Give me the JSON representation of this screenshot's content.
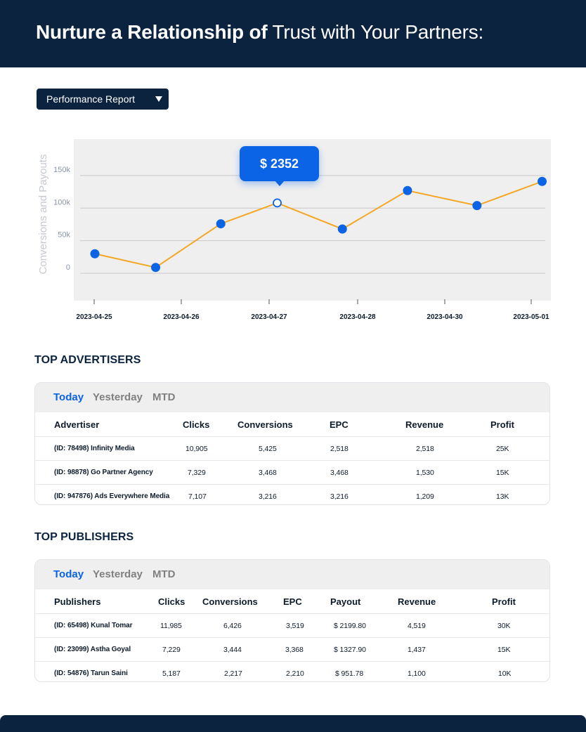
{
  "header": {
    "title_bold": "Nurture a Relationship of",
    "title_rest": " Trust with Your Partners:"
  },
  "report_select": {
    "label": "Performance Report"
  },
  "chart_data": {
    "type": "line",
    "ylabel": "Conversions and Payouts",
    "xlabel": "",
    "title": "",
    "y_ticks": [
      "150k",
      "100k",
      "50k",
      "0"
    ],
    "y_tick_values": [
      150000,
      100000,
      50000,
      0
    ],
    "x_tick_labels": [
      "2023-04-25",
      "2023-04-26",
      "2023-04-27",
      "2023-04-28",
      "2023-04-30",
      "2023-05-01"
    ],
    "x": [
      0,
      0.7,
      1.45,
      2.1,
      2.85,
      3.6,
      4.4,
      5.15
    ],
    "values": [
      30000,
      9000,
      76000,
      108000,
      68000,
      127000,
      104000,
      141000
    ],
    "highlight_index": 3,
    "tooltip": "$ 2352",
    "ylim": [
      -42000,
      206000
    ],
    "line_color": "#f5a623",
    "point_color": "#0b63e5",
    "grid": true
  },
  "advertisers": {
    "title": "TOP ADVERTISERS",
    "tabs": [
      "Today",
      "Yesterday",
      "MTD"
    ],
    "columns": [
      "Advertiser",
      "Clicks",
      "Conversions",
      "EPC",
      "Revenue",
      "Profit"
    ],
    "rows": [
      [
        "(ID: 78498) Infinity Media",
        "10,905",
        "5,425",
        "2,518",
        "2,518",
        "25K"
      ],
      [
        "(ID: 98878) Go Partner Agency",
        "7,329",
        "3,468",
        "3,468",
        "1,530",
        "15K"
      ],
      [
        "(ID: 947876) Ads Everywhere Media",
        "7,107",
        "3,216",
        "3,216",
        "1,209",
        "13K"
      ]
    ]
  },
  "publishers": {
    "title": "TOP PUBLISHERS",
    "tabs": [
      "Today",
      "Yesterday",
      "MTD"
    ],
    "columns": [
      "Publishers",
      "Clicks",
      "Conversions",
      "EPC",
      "Payout",
      "Revenue",
      "Profit"
    ],
    "rows": [
      [
        "(ID: 65498) Kunal Tomar",
        "11,985",
        "6,426",
        "3,519",
        "$ 2199.80",
        "4,519",
        "30K"
      ],
      [
        "(ID: 23099) Astha Goyal",
        "7,229",
        "3,444",
        "3,368",
        "$ 1327.90",
        "1,437",
        "15K"
      ],
      [
        "(ID: 54876) Tarun Saini",
        "5,187",
        "2,217",
        "2,210",
        "$ 951.78",
        "1,100",
        "10K"
      ]
    ]
  },
  "colors": {
    "navy": "#0c2340",
    "accent_blue": "#0b63e5",
    "line_orange": "#f5a623",
    "chart_bg": "#efefef"
  }
}
